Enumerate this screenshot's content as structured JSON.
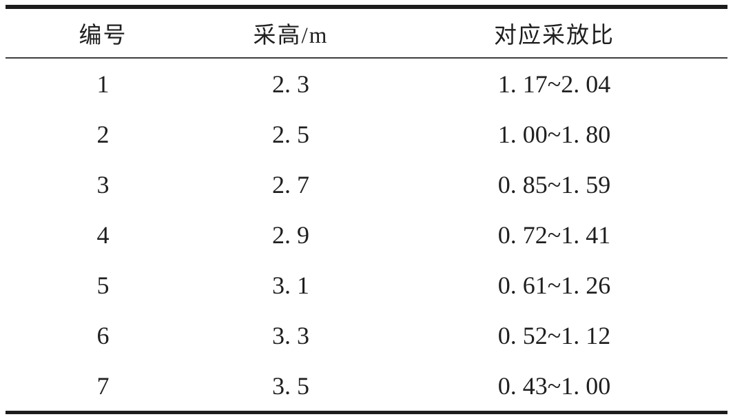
{
  "page": {
    "background_color": "#ffffff",
    "text_color": "#1f1f1f",
    "rule_color": "#1c1c1c"
  },
  "table": {
    "columns": [
      {
        "label": "编号"
      },
      {
        "label": "采高/m"
      },
      {
        "label": "对应采放比"
      }
    ],
    "rows": [
      {
        "id": "1",
        "mining_height": "2. 3",
        "ratio_range": "1. 17~2. 04"
      },
      {
        "id": "2",
        "mining_height": "2. 5",
        "ratio_range": "1. 00~1. 80"
      },
      {
        "id": "3",
        "mining_height": "2. 7",
        "ratio_range": "0. 85~1. 59"
      },
      {
        "id": "4",
        "mining_height": "2. 9",
        "ratio_range": "0. 72~1. 41"
      },
      {
        "id": "5",
        "mining_height": "3. 1",
        "ratio_range": "0. 61~1. 26"
      },
      {
        "id": "6",
        "mining_height": "3. 3",
        "ratio_range": "0. 52~1. 12"
      },
      {
        "id": "7",
        "mining_height": "3. 5",
        "ratio_range": "0. 43~1. 00"
      }
    ]
  }
}
